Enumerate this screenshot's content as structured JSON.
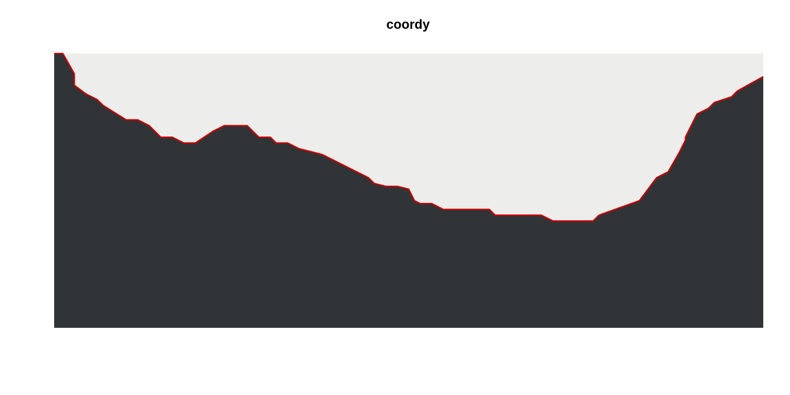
{
  "chart_data": {
    "type": "area",
    "title": "coordy",
    "xlabel": "",
    "ylabel": "",
    "grid": false,
    "legend": "none",
    "colors": {
      "fill": "#313437",
      "background": "#ededeb",
      "line": "#cc0000"
    },
    "xlim": [
      0,
      123
    ],
    "ylim": [
      0,
      47.5
    ],
    "x": [
      0,
      1.5,
      3.5,
      3.5,
      5.5,
      7.5,
      8.5,
      12.5,
      14.5,
      16.5,
      18.5,
      20.5,
      22.5,
      24.5,
      27.5,
      29.5,
      33.5,
      35.5,
      37.5,
      38.5,
      40.5,
      42.5,
      46.5,
      48.5,
      54.5,
      55.5,
      57.5,
      59.5,
      61.5,
      62.5,
      63.5,
      65.5,
      67.5,
      69.5,
      75.5,
      76.5,
      78.5,
      84.5,
      86.5,
      93.5,
      94.5,
      101.5,
      104.5,
      106.5,
      108.5,
      109.5,
      109.5,
      111.5,
      113.5,
      114.5,
      117.5,
      118.5,
      123
    ],
    "y": [
      47.5,
      47.5,
      44,
      42,
      40.5,
      39.5,
      38.5,
      36,
      36,
      35,
      33,
      33,
      32,
      32,
      34,
      35,
      35,
      33,
      33,
      32,
      32,
      31,
      30,
      29,
      26,
      25,
      24.5,
      24.5,
      24,
      22,
      21.5,
      21.5,
      20.5,
      20.5,
      20.5,
      19.5,
      19.5,
      19.5,
      18.5,
      18.5,
      19.5,
      22,
      26,
      27,
      30.5,
      32.5,
      33,
      37,
      38,
      39,
      40,
      41,
      43.5
    ]
  }
}
